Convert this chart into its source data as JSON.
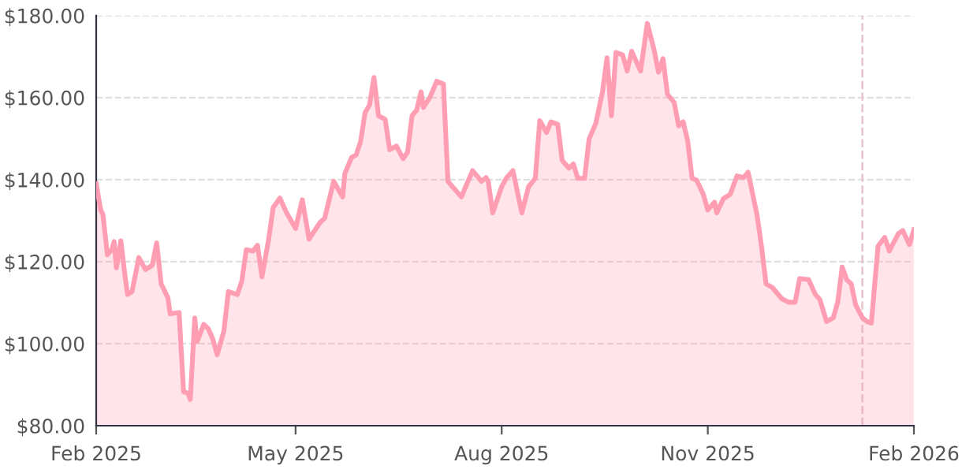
{
  "chart_data": {
    "type": "area",
    "x": [
      "2025-02-01",
      "2025-02-03",
      "2025-02-04",
      "2025-02-06",
      "2025-02-08",
      "2025-02-09",
      "2025-02-10",
      "2025-02-12",
      "2025-02-14",
      "2025-02-15",
      "2025-02-17",
      "2025-02-20",
      "2025-02-23",
      "2025-02-26",
      "2025-02-28",
      "2025-03-02",
      "2025-03-05",
      "2025-03-06",
      "2025-03-10",
      "2025-03-12",
      "2025-03-14",
      "2025-03-15",
      "2025-03-17",
      "2025-03-18",
      "2025-03-21",
      "2025-03-23",
      "2025-03-25",
      "2025-03-27",
      "2025-03-30",
      "2025-04-01",
      "2025-04-05",
      "2025-04-07",
      "2025-04-09",
      "2025-04-12",
      "2025-04-14",
      "2025-04-16",
      "2025-04-19",
      "2025-04-21",
      "2025-04-24",
      "2025-04-27",
      "2025-05-01",
      "2025-05-04",
      "2025-05-07",
      "2025-05-12",
      "2025-05-14",
      "2025-05-18",
      "2025-05-22",
      "2025-05-23",
      "2025-05-26",
      "2025-05-28",
      "2025-05-30",
      "2025-06-01",
      "2025-06-03",
      "2025-06-05",
      "2025-06-07",
      "2025-06-10",
      "2025-06-12",
      "2025-06-15",
      "2025-06-18",
      "2025-06-20",
      "2025-06-22",
      "2025-06-24",
      "2025-06-26",
      "2025-06-27",
      "2025-06-30",
      "2025-07-03",
      "2025-07-06",
      "2025-07-08",
      "2025-07-10",
      "2025-07-14",
      "2025-07-19",
      "2025-07-23",
      "2025-07-25",
      "2025-07-26",
      "2025-07-28",
      "2025-08-01",
      "2025-08-03",
      "2025-08-06",
      "2025-08-10",
      "2025-08-13",
      "2025-08-16",
      "2025-08-18",
      "2025-08-21",
      "2025-08-23",
      "2025-08-26",
      "2025-08-28",
      "2025-08-31",
      "2025-09-02",
      "2025-09-04",
      "2025-09-07",
      "2025-09-09",
      "2025-09-12",
      "2025-09-15",
      "2025-09-17",
      "2025-09-19",
      "2025-09-21",
      "2025-09-24",
      "2025-09-26",
      "2025-09-28",
      "2025-10-02",
      "2025-10-05",
      "2025-10-08",
      "2025-10-10",
      "2025-10-12",
      "2025-10-14",
      "2025-10-17",
      "2025-10-19",
      "2025-10-21",
      "2025-10-23",
      "2025-10-25",
      "2025-10-27",
      "2025-10-30",
      "2025-11-01",
      "2025-11-04",
      "2025-11-05",
      "2025-11-08",
      "2025-11-11",
      "2025-11-14",
      "2025-11-17",
      "2025-11-19",
      "2025-11-23",
      "2025-11-25",
      "2025-11-27",
      "2025-11-30",
      "2025-12-04",
      "2025-12-07",
      "2025-12-10",
      "2025-12-12",
      "2025-12-16",
      "2025-12-19",
      "2025-12-21",
      "2025-12-24",
      "2025-12-27",
      "2025-12-29",
      "2025-12-31",
      "2026-01-02",
      "2026-01-04",
      "2026-01-06",
      "2026-01-09",
      "2026-01-11",
      "2026-01-13",
      "2026-01-16",
      "2026-01-19",
      "2026-01-21",
      "2026-01-25",
      "2026-01-27",
      "2026-01-30",
      "2026-02-01"
    ],
    "series": [
      {
        "color": "#ff9eb3",
        "values": [
          139,
          132.6,
          131.5,
          121.7,
          123,
          124.9,
          118.5,
          125.1,
          115.9,
          112,
          112.7,
          121,
          118.1,
          119.1,
          124.6,
          114.6,
          111.2,
          107.3,
          107.6,
          88.3,
          87.9,
          86.4,
          106.3,
          100.5,
          104.7,
          103.7,
          101.2,
          97.3,
          103.1,
          112.7,
          112,
          115.3,
          122.9,
          122.6,
          124,
          116.3,
          125.5,
          133.2,
          135.5,
          131.9,
          128.1,
          135.1,
          125.5,
          129.6,
          130.6,
          139.6,
          135.8,
          141.5,
          145.4,
          146,
          149.2,
          156.3,
          158.2,
          164.9,
          155.6,
          154.7,
          147.3,
          148.2,
          145.1,
          146.7,
          155.6,
          156.9,
          161.4,
          157.6,
          160.1,
          164,
          163.3,
          139.6,
          138.3,
          135.8,
          142.2,
          139.6,
          140.5,
          139.6,
          131.9,
          138.3,
          140.3,
          142.2,
          131.9,
          138.3,
          140.3,
          154.4,
          151.5,
          154.1,
          153.5,
          144.7,
          142.8,
          143.8,
          140.3,
          140.3,
          149.9,
          153.7,
          161.4,
          169.7,
          155.6,
          171,
          170.4,
          166.5,
          171.3,
          166.5,
          178.1,
          171.7,
          166.2,
          169.5,
          160.8,
          158.8,
          153.1,
          154.1,
          149.5,
          140.3,
          139.9,
          136.4,
          132.6,
          134.5,
          131.9,
          135.4,
          136.4,
          140.9,
          140.5,
          141.8,
          131.3,
          123.6,
          114.6,
          113.6,
          111,
          110.1,
          110.1,
          115.9,
          115.6,
          112,
          110.8,
          105.4,
          106.3,
          110.1,
          118.7,
          115.6,
          114.6,
          109.5,
          106.3,
          105.4,
          105,
          123.8,
          125.9,
          122.6,
          126.8,
          127.6,
          124.2,
          127.8
        ]
      }
    ],
    "xlim": [
      "2025-02-01",
      "2026-02-01"
    ],
    "xticks": [
      {
        "value": "2025-02-01",
        "label": "Feb 2025"
      },
      {
        "value": "2025-05-01",
        "label": "May 2025"
      },
      {
        "value": "2025-08-01",
        "label": "Aug 2025"
      },
      {
        "value": "2025-11-01",
        "label": "Nov 2025"
      },
      {
        "value": "2026-02-01",
        "label": "Feb 2026"
      }
    ],
    "ylim": [
      80,
      180
    ],
    "yticks": [
      {
        "value": 80,
        "label": "$80.00"
      },
      {
        "value": 100,
        "label": "$100.00"
      },
      {
        "value": 120,
        "label": "$120.00"
      },
      {
        "value": 140,
        "label": "$140.00"
      },
      {
        "value": 160,
        "label": "$160.00"
      },
      {
        "value": 180,
        "label": "$180.00"
      }
    ],
    "grid": "y",
    "ref_lines": [
      {
        "axis": "x",
        "value": "2026-01-09",
        "color": "#e8c8d0",
        "line_style": "dashed"
      }
    ]
  }
}
